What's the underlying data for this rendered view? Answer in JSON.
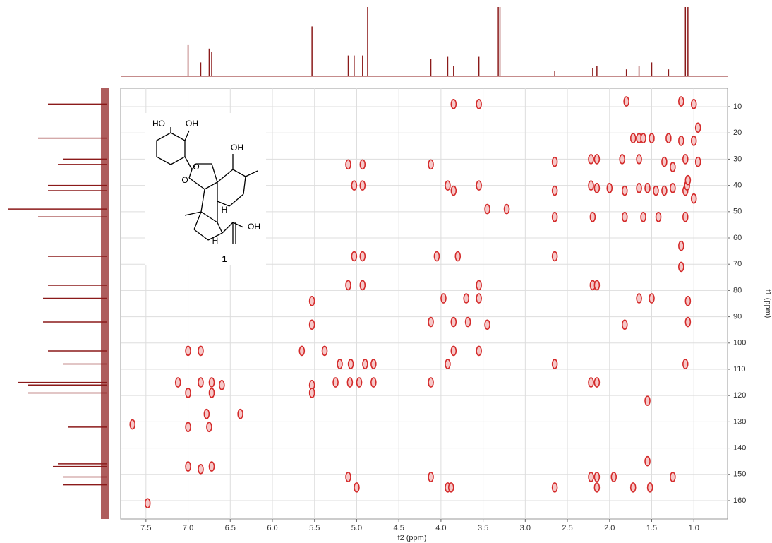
{
  "chart_data": {
    "type": "scatter",
    "x_label": "f2 (ppm)",
    "y_label": "f1 (ppm)",
    "color": "#d42a2a",
    "grid": true,
    "xlim": [
      7.8,
      0.6
    ],
    "ylim": [
      3,
      167
    ],
    "xticks": [
      7.5,
      {
        "value": 7,
        "label": "7.0"
      },
      6.5,
      {
        "value": 6,
        "label": "6.0"
      },
      5.5,
      {
        "value": 5,
        "label": "5.0"
      },
      4.5,
      {
        "value": 4,
        "label": "4.0"
      },
      3.5,
      {
        "value": 3,
        "label": "3.0"
      },
      2.5,
      {
        "value": 2,
        "label": "2.0"
      },
      1.5,
      {
        "value": 1,
        "label": "1.0"
      }
    ],
    "yticks": [
      10,
      20,
      30,
      40,
      50,
      60,
      70,
      80,
      90,
      100,
      110,
      120,
      130,
      140,
      150,
      160
    ],
    "x": [
      3.85,
      3.55,
      1.15,
      1.0,
      1.8,
      0.95,
      1.72,
      1.65,
      1.6,
      1.5,
      1.3,
      1.15,
      1.0,
      5.1,
      4.93,
      4.12,
      2.65,
      2.22,
      2.15,
      1.85,
      1.65,
      1.35,
      1.1,
      0.95,
      1.25,
      5.03,
      4.93,
      3.92,
      3.85,
      3.55,
      2.65,
      2.22,
      2.15,
      2.0,
      1.82,
      1.65,
      1.55,
      1.45,
      1.35,
      1.25,
      1.1,
      1.08,
      1.0,
      1.07,
      3.45,
      3.22,
      2.65,
      2.2,
      1.82,
      1.6,
      1.42,
      1.1,
      1.15,
      5.03,
      4.93,
      4.05,
      3.8,
      2.65,
      1.15,
      5.1,
      4.93,
      3.55,
      2.2,
      2.15,
      5.53,
      3.97,
      3.7,
      3.55,
      1.65,
      1.5,
      1.07,
      5.53,
      4.12,
      3.85,
      3.68,
      3.45,
      1.82,
      1.07,
      7.0,
      6.85,
      5.65,
      5.38,
      3.85,
      3.55,
      5.2,
      5.07,
      4.9,
      4.8,
      3.92,
      2.65,
      1.1,
      7.12,
      6.85,
      6.72,
      6.6,
      5.53,
      5.25,
      5.08,
      4.97,
      4.8,
      4.12,
      2.22,
      2.15,
      7.0,
      6.72,
      5.53,
      1.55,
      6.78,
      6.38,
      7.66,
      7.0,
      6.75,
      1.55,
      7.0,
      6.85,
      6.72,
      5.1,
      4.12,
      2.22,
      2.15,
      1.95,
      1.25,
      5.0,
      3.92,
      3.88,
      2.65,
      2.15,
      1.72,
      1.52,
      7.48
    ],
    "values": [
      9,
      9,
      8,
      9,
      8,
      18,
      22,
      22,
      22,
      22,
      22,
      23,
      23,
      32,
      32,
      32,
      31,
      30,
      30,
      30,
      30,
      31,
      30,
      31,
      33,
      40,
      40,
      40,
      42,
      40,
      42,
      40,
      41,
      41,
      42,
      41,
      41,
      42,
      42,
      41,
      42,
      40,
      45,
      38,
      49,
      49,
      52,
      52,
      52,
      52,
      52,
      52,
      63,
      67,
      67,
      67,
      67,
      67,
      71,
      78,
      78,
      78,
      78,
      78,
      84,
      83,
      83,
      83,
      83,
      83,
      84,
      93,
      92,
      92,
      92,
      93,
      93,
      92,
      103,
      103,
      103,
      103,
      103,
      103,
      108,
      108,
      108,
      108,
      108,
      108,
      108,
      115,
      115,
      115,
      116,
      116,
      115,
      115,
      115,
      115,
      115,
      115,
      115,
      119,
      119,
      119,
      122,
      127,
      127,
      131,
      132,
      132,
      145,
      147,
      148,
      147,
      151,
      151,
      151,
      151,
      151,
      151,
      155,
      155,
      155,
      155,
      155,
      155,
      155,
      161
    ],
    "f2_projection": {
      "x": [
        7.0,
        6.85,
        6.75,
        6.72,
        5.53,
        5.1,
        5.03,
        4.93,
        4.87,
        4.12,
        3.92,
        3.85,
        3.55,
        3.32,
        3.3,
        2.65,
        2.2,
        2.15,
        1.8,
        1.65,
        1.5,
        1.3,
        1.1,
        1.07
      ],
      "values": [
        0.45,
        0.2,
        0.4,
        0.35,
        0.72,
        0.3,
        0.3,
        0.3,
        1.0,
        0.25,
        0.28,
        0.15,
        0.28,
        1.0,
        1.0,
        0.08,
        0.12,
        0.15,
        0.1,
        0.15,
        0.2,
        0.1,
        1.0,
        1.0
      ]
    },
    "f1_projection": {
      "y": [
        9,
        22,
        30,
        32,
        40,
        42,
        49,
        52,
        67,
        78,
        83,
        92,
        103,
        108,
        115,
        116,
        119,
        132,
        146,
        147,
        151,
        154
      ],
      "values": [
        0.6,
        0.7,
        0.45,
        0.5,
        0.6,
        0.6,
        1.0,
        0.7,
        0.6,
        0.6,
        0.65,
        0.65,
        0.6,
        0.45,
        0.9,
        0.8,
        0.8,
        0.4,
        0.5,
        0.55,
        0.45,
        0.45
      ]
    },
    "structure_labels": [
      "HO",
      "OH",
      "O",
      "O",
      "OH",
      "H",
      "H",
      "OH",
      "1"
    ]
  }
}
